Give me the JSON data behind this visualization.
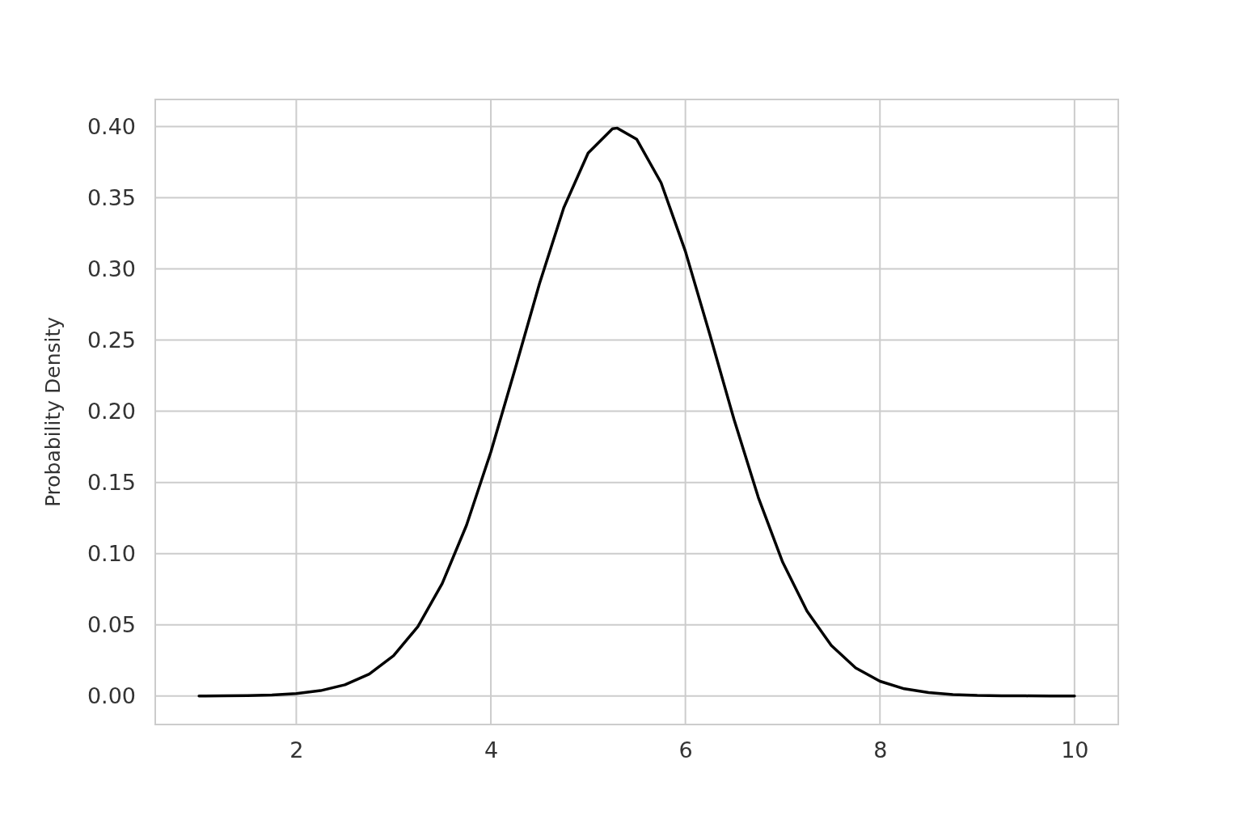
{
  "chart_data": {
    "type": "line",
    "ylabel": "Probability Density",
    "x": [
      1,
      1.25,
      1.5,
      1.75,
      2,
      2.25,
      2.5,
      2.75,
      3,
      3.25,
      3.5,
      3.75,
      4,
      4.25,
      4.5,
      4.75,
      5,
      5.25,
      5.3,
      5.5,
      5.75,
      6,
      6.25,
      6.5,
      6.75,
      7,
      7.25,
      7.5,
      7.75,
      8,
      8.25,
      8.5,
      8.75,
      9,
      9.25,
      9.5,
      9.75,
      10
    ],
    "series": [
      {
        "color": "#000000",
        "values": [
          0.0,
          0.0001,
          0.0003,
          0.0007,
          0.0017,
          0.0038,
          0.0079,
          0.0154,
          0.0283,
          0.0488,
          0.079,
          0.12,
          0.1714,
          0.2299,
          0.2897,
          0.343,
          0.3814,
          0.3984,
          0.3989,
          0.391,
          0.3605,
          0.3123,
          0.2541,
          0.1942,
          0.1394,
          0.094,
          0.0596,
          0.0355,
          0.0198,
          0.0104,
          0.0051,
          0.0024,
          0.001,
          0.0004,
          0.0002,
          0.0001,
          0.0,
          0.0
        ]
      }
    ],
    "xlim": [
      0.55,
      10.45
    ],
    "xticks": [
      2,
      4,
      6,
      8,
      10
    ],
    "ylim": [
      -0.02,
      0.419
    ],
    "yticks": [
      {
        "value": 0,
        "label": "0.00"
      },
      {
        "value": 0.05,
        "label": "0.05"
      },
      {
        "value": 0.1,
        "label": "0.10"
      },
      {
        "value": 0.15,
        "label": "0.15"
      },
      {
        "value": 0.2,
        "label": "0.20"
      },
      {
        "value": 0.25,
        "label": "0.25"
      },
      {
        "value": 0.3,
        "label": "0.30"
      },
      {
        "value": 0.35,
        "label": "0.35"
      },
      {
        "value": 0.4,
        "label": "0.40"
      }
    ],
    "grid": true,
    "line_style": "solid"
  }
}
